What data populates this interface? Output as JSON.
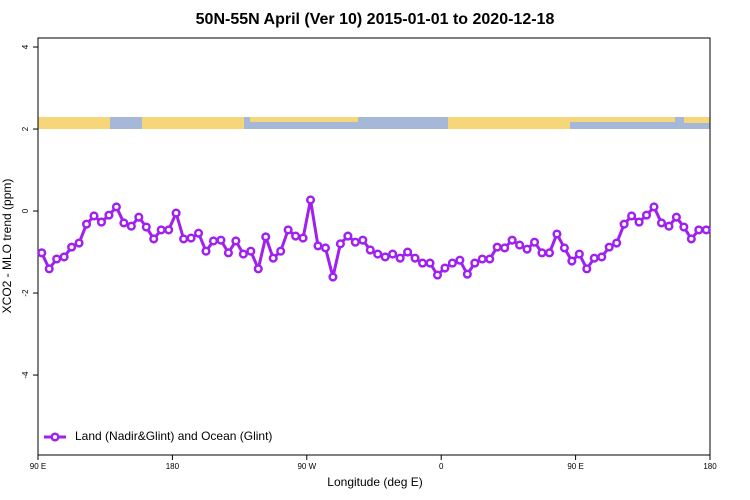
{
  "chart_data": {
    "type": "line",
    "title": "50N-55N April (Ver 10)   2015-01-01 to 2020-12-18",
    "xlabel": "Longitude (deg E)",
    "ylabel": "XCO2 - MLO trend (ppm)",
    "xlim": [
      90,
      540
    ],
    "ylim": [
      -5.95,
      4.22
    ],
    "xticks": [
      {
        "value": 90,
        "label": "90 E"
      },
      180,
      {
        "value": 270,
        "label": "90 W"
      },
      {
        "value": 360,
        "label": "0"
      },
      {
        "value": 450,
        "label": "90 E"
      },
      {
        "value": 540,
        "label": "180"
      }
    ],
    "yticks": [
      4,
      2,
      0,
      -2,
      -4
    ],
    "legend": "bottom-left",
    "x": [
      92.5,
      97.5,
      102.5,
      107.5,
      112.5,
      117.5,
      122.5,
      127.5,
      132.5,
      137.5,
      142.5,
      147.5,
      152.5,
      157.5,
      162.5,
      167.5,
      172.5,
      177.5,
      182.5,
      187.5,
      192.5,
      197.5,
      202.5,
      207.5,
      212.5,
      217.5,
      222.5,
      227.5,
      232.5,
      237.5,
      242.5,
      247.5,
      252.5,
      257.5,
      262.5,
      267.5,
      272.5,
      277.5,
      282.5,
      287.5,
      292.5,
      297.5,
      302.5,
      307.5,
      312.5,
      317.5,
      322.5,
      327.5,
      332.5,
      337.5,
      342.5,
      347.5,
      352.5,
      357.5,
      362.5,
      367.5,
      372.5,
      377.5,
      382.5,
      387.5,
      392.5,
      397.5,
      402.5,
      407.5,
      412.5,
      417.5,
      422.5,
      427.5,
      432.5,
      437.5,
      442.5,
      447.5,
      452.5,
      457.5,
      462.5,
      467.5,
      472.5,
      477.5,
      482.5,
      487.5,
      492.5,
      497.5,
      502.5,
      507.5,
      512.5,
      517.5,
      522.5,
      527.5,
      532.5,
      537.5
    ],
    "series": [
      {
        "name": "Land (Nadir&Glint) and Ocean (Glint)",
        "color": "#a020f0",
        "values": [
          -1.02,
          -1.41,
          -1.17,
          -1.12,
          -0.88,
          -0.78,
          -0.32,
          -0.12,
          -0.27,
          -0.1,
          0.1,
          -0.29,
          -0.37,
          -0.15,
          -0.39,
          -0.68,
          -0.46,
          -0.46,
          -0.05,
          -0.68,
          -0.66,
          -0.54,
          -0.98,
          -0.73,
          -0.71,
          -1.02,
          -0.73,
          -1.05,
          -0.98,
          -1.41,
          -0.63,
          -1.15,
          -0.98,
          -0.46,
          -0.61,
          -0.66,
          0.27,
          -0.85,
          -0.9,
          -1.61,
          -0.8,
          -0.61,
          -0.76,
          -0.71,
          -0.95,
          -1.05,
          -1.12,
          -1.05,
          -1.15,
          -1.0,
          -1.15,
          -1.27,
          -1.27,
          -1.56,
          -1.39,
          -1.27,
          -1.2,
          -1.54,
          -1.27,
          -1.17,
          -1.17,
          -0.88,
          -0.9,
          -0.71,
          -0.83,
          -0.93,
          -0.76,
          -1.02,
          -1.02,
          -0.56,
          -0.9,
          -1.22,
          -1.05,
          -1.41,
          -1.15,
          -1.12,
          -0.88,
          -0.78,
          -0.32,
          -0.12,
          -0.27,
          -0.1,
          0.1,
          -0.29,
          -0.37,
          -0.15,
          -0.39,
          -0.68,
          -0.46,
          -0.46
        ]
      }
    ]
  }
}
